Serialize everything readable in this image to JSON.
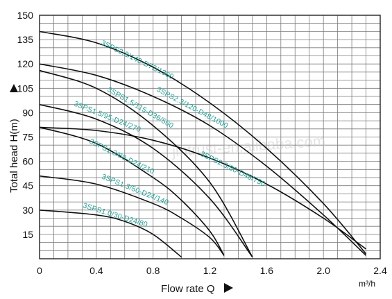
{
  "chart_data": {
    "type": "line",
    "xlabel": "Flow rate Q",
    "ylabel": "Total head H(m)",
    "x_unit": "m³/h",
    "xlim": [
      0,
      2.4
    ],
    "ylim": [
      0,
      150
    ],
    "x_ticks": [
      0,
      0.4,
      0.8,
      1.2,
      1.6,
      2.0,
      2.4
    ],
    "x_tick_labels": [
      "0",
      "0.4",
      "0.8",
      "1.2",
      "1.6",
      "2.0",
      "2.4"
    ],
    "y_ticks": [
      15,
      30,
      45,
      60,
      75,
      90,
      105,
      120,
      135,
      150
    ],
    "y_tick_labels": [
      "15",
      "30",
      "45",
      "60",
      "75",
      "90",
      "105",
      "120",
      "135",
      "150"
    ],
    "grid": true,
    "watermark": "jintrust-en.alibaba.com",
    "series": [
      {
        "name": "3SPS2.3/140-D72/1300",
        "x": [
          0,
          0.4,
          0.8,
          1.2,
          1.6,
          2.0,
          2.3
        ],
        "y": [
          140,
          133,
          118,
          96,
          68,
          34,
          3
        ]
      },
      {
        "name": "3SPS2.3/120-D48/1000",
        "x": [
          0,
          0.4,
          0.8,
          1.2,
          1.6,
          2.0,
          2.3
        ],
        "y": [
          120,
          113,
          100,
          82,
          57,
          27,
          2
        ]
      },
      {
        "name": "3SPS1.5/115-D36/500",
        "x": [
          0,
          0.4,
          0.8,
          1.2,
          1.5
        ],
        "y": [
          116,
          105,
          82,
          47,
          1
        ]
      },
      {
        "name": "3SPS1.5/95-D24/270",
        "x": [
          0,
          0.4,
          0.8,
          1.2,
          1.5
        ],
        "y": [
          95,
          86,
          68,
          37,
          1
        ]
      },
      {
        "name": "3SPS2.3/80-D48/750",
        "x": [
          0,
          0.4,
          0.8,
          1.2,
          1.6,
          2.0,
          2.3
        ],
        "y": [
          81,
          79,
          73,
          62,
          46,
          25,
          6
        ]
      },
      {
        "name": "3SPS1.3/80-D24/210",
        "x": [
          0,
          0.4,
          0.8,
          1.0,
          1.2,
          1.3
        ],
        "y": [
          81,
          71,
          50,
          36,
          17,
          2
        ]
      },
      {
        "name": "3SPS1.3/50-D24/140",
        "x": [
          0,
          0.4,
          0.8,
          1.0,
          1.2,
          1.3
        ],
        "y": [
          51,
          46,
          34,
          25,
          13,
          2
        ]
      },
      {
        "name": "3SPS1.0/30-D24/80",
        "x": [
          0,
          0.4,
          0.6,
          0.8,
          1.0
        ],
        "y": [
          30,
          27,
          23,
          15,
          1
        ]
      }
    ]
  }
}
